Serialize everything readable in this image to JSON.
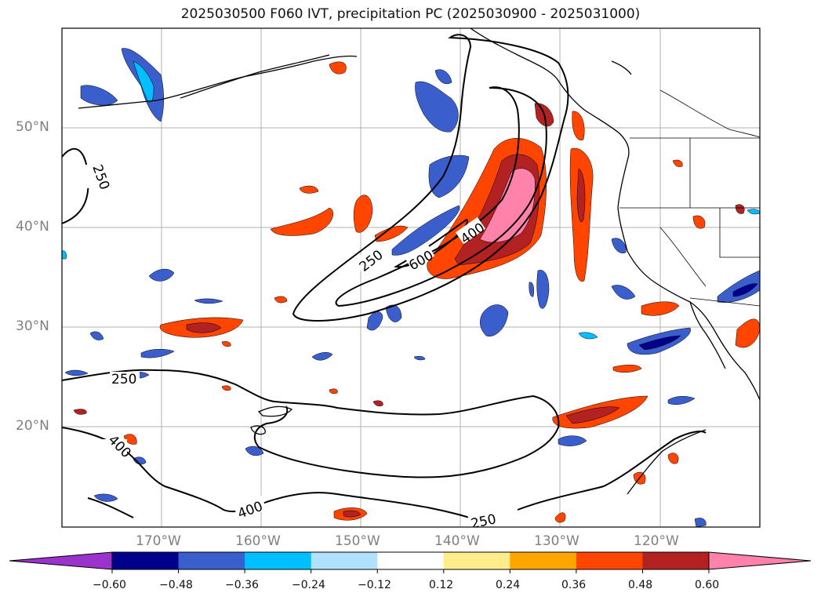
{
  "title": "2025030500 F060 IVT, precipitation PC (2025030900 - 2025031000)",
  "lat_labels": [
    "50°N",
    "40°N",
    "30°N",
    "20°N"
  ],
  "lon_labels": [
    "170°W",
    "160°W",
    "150°W",
    "140°W",
    "130°W",
    "120°W"
  ],
  "contour_labels": {
    "c250_west": "250",
    "c250_mid": "250",
    "c600": "600",
    "c400_core": "400",
    "c250_south": "250",
    "c400_southwest": "400",
    "c400_south": "400",
    "c250_bottom": "250"
  },
  "colorbar": {
    "ticks": [
      "−0.60",
      "−0.48",
      "−0.36",
      "−0.24",
      "−0.12",
      "0.12",
      "0.24",
      "0.36",
      "0.48",
      "0.60"
    ],
    "colors": [
      "#9933cc",
      "#00008b",
      "#3a5fcd",
      "#00bfff",
      "#b0e2ff",
      "#ffffff",
      "#ffec8b",
      "#ffa500",
      "#ff4500",
      "#b22222",
      "#ff82ab"
    ]
  }
}
